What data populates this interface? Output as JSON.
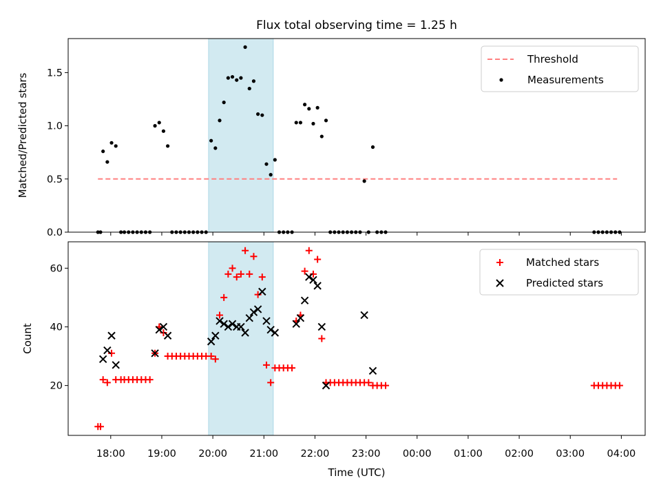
{
  "chart_data": {
    "title": "Flux total observing time = 1.25 h",
    "shaded_interval": [
      "19:55",
      "21:11"
    ],
    "shade_color": "#add8e6",
    "x_axis": {
      "label": "Time (UTC)",
      "range": [
        "17:10",
        "04:28"
      ],
      "tick_labels": [
        "18:00",
        "19:00",
        "20:00",
        "21:00",
        "22:00",
        "23:00",
        "00:00",
        "01:00",
        "02:00",
        "03:00",
        "04:00"
      ]
    },
    "panels": [
      {
        "type": "scatter",
        "ylabel": "Matched/Predicted stars",
        "ylim": [
          0,
          1.82
        ],
        "y_ticks": [
          "0.0",
          "0.5",
          "1.0",
          "1.5"
        ],
        "legend_position": "upper right",
        "series": [
          {
            "name": "Threshold",
            "kind": "line",
            "style": "dashed",
            "color": "#ff8080",
            "points": [
              [
                "17:45",
                0.5
              ],
              [
                "03:55",
                0.5
              ]
            ]
          },
          {
            "name": "Measurements",
            "kind": "scatter",
            "color": "#000000",
            "points": [
              [
                "17:45",
                0
              ],
              [
                "17:48",
                0
              ],
              [
                "17:51",
                0.76
              ],
              [
                "17:56",
                0.66
              ],
              [
                "18:01",
                0.84
              ],
              [
                "18:06",
                0.81
              ],
              [
                "18:12",
                0
              ],
              [
                "18:16",
                0
              ],
              [
                "18:21",
                0
              ],
              [
                "18:26",
                0
              ],
              [
                "18:31",
                0
              ],
              [
                "18:36",
                0
              ],
              [
                "18:41",
                0
              ],
              [
                "18:46",
                0
              ],
              [
                "18:52",
                1.0
              ],
              [
                "18:57",
                1.03
              ],
              [
                "19:02",
                0.95
              ],
              [
                "19:07",
                0.81
              ],
              [
                "19:12",
                0
              ],
              [
                "19:17",
                0
              ],
              [
                "19:22",
                0
              ],
              [
                "19:27",
                0
              ],
              [
                "19:32",
                0
              ],
              [
                "19:37",
                0
              ],
              [
                "19:42",
                0
              ],
              [
                "19:47",
                0
              ],
              [
                "19:52",
                0
              ],
              [
                "19:58",
                0.86
              ],
              [
                "20:03",
                0.79
              ],
              [
                "20:08",
                1.05
              ],
              [
                "20:13",
                1.22
              ],
              [
                "20:18",
                1.45
              ],
              [
                "20:23",
                1.46
              ],
              [
                "20:28",
                1.43
              ],
              [
                "20:33",
                1.45
              ],
              [
                "20:38",
                1.74
              ],
              [
                "20:43",
                1.35
              ],
              [
                "20:48",
                1.42
              ],
              [
                "20:53",
                1.11
              ],
              [
                "20:58",
                1.1
              ],
              [
                "21:03",
                0.64
              ],
              [
                "21:08",
                0.54
              ],
              [
                "21:13",
                0.68
              ],
              [
                "21:18",
                0
              ],
              [
                "21:23",
                0
              ],
              [
                "21:28",
                0
              ],
              [
                "21:33",
                0
              ],
              [
                "21:38",
                1.03
              ],
              [
                "21:43",
                1.03
              ],
              [
                "21:48",
                1.2
              ],
              [
                "21:53",
                1.16
              ],
              [
                "21:58",
                1.02
              ],
              [
                "22:03",
                1.17
              ],
              [
                "22:08",
                0.9
              ],
              [
                "22:13",
                1.05
              ],
              [
                "22:18",
                0
              ],
              [
                "22:23",
                0
              ],
              [
                "22:28",
                0
              ],
              [
                "22:33",
                0
              ],
              [
                "22:38",
                0
              ],
              [
                "22:43",
                0
              ],
              [
                "22:48",
                0
              ],
              [
                "22:53",
                0
              ],
              [
                "22:58",
                0.48
              ],
              [
                "23:03",
                0
              ],
              [
                "23:08",
                0.8
              ],
              [
                "23:13",
                0
              ],
              [
                "23:18",
                0
              ],
              [
                "23:23",
                0
              ],
              [
                "03:28",
                0
              ],
              [
                "03:33",
                0
              ],
              [
                "03:38",
                0
              ],
              [
                "03:43",
                0
              ],
              [
                "03:48",
                0
              ],
              [
                "03:53",
                0
              ],
              [
                "03:58",
                0
              ]
            ]
          }
        ]
      },
      {
        "type": "scatter",
        "ylabel": "Count",
        "ylim": [
          3,
          69
        ],
        "y_ticks": [
          "20",
          "40",
          "60"
        ],
        "legend_position": "upper right",
        "series": [
          {
            "name": "Matched stars",
            "marker": "+",
            "color": "#ff0000",
            "points": [
              [
                "17:45",
                6
              ],
              [
                "17:48",
                6
              ],
              [
                "17:51",
                22
              ],
              [
                "17:56",
                21
              ],
              [
                "18:01",
                31
              ],
              [
                "18:06",
                22
              ],
              [
                "18:12",
                22
              ],
              [
                "18:16",
                22
              ],
              [
                "18:21",
                22
              ],
              [
                "18:26",
                22
              ],
              [
                "18:31",
                22
              ],
              [
                "18:36",
                22
              ],
              [
                "18:41",
                22
              ],
              [
                "18:46",
                22
              ],
              [
                "18:52",
                31
              ],
              [
                "18:57",
                40
              ],
              [
                "19:02",
                38
              ],
              [
                "19:07",
                30
              ],
              [
                "19:12",
                30
              ],
              [
                "19:17",
                30
              ],
              [
                "19:22",
                30
              ],
              [
                "19:27",
                30
              ],
              [
                "19:32",
                30
              ],
              [
                "19:37",
                30
              ],
              [
                "19:42",
                30
              ],
              [
                "19:47",
                30
              ],
              [
                "19:52",
                30
              ],
              [
                "19:58",
                30
              ],
              [
                "20:03",
                29
              ],
              [
                "20:08",
                44
              ],
              [
                "20:13",
                50
              ],
              [
                "20:18",
                58
              ],
              [
                "20:23",
                60
              ],
              [
                "20:28",
                57
              ],
              [
                "20:33",
                58
              ],
              [
                "20:38",
                66
              ],
              [
                "20:43",
                58
              ],
              [
                "20:48",
                64
              ],
              [
                "20:53",
                51
              ],
              [
                "20:58",
                57
              ],
              [
                "21:03",
                27
              ],
              [
                "21:08",
                21
              ],
              [
                "21:13",
                26
              ],
              [
                "21:18",
                26
              ],
              [
                "21:23",
                26
              ],
              [
                "21:28",
                26
              ],
              [
                "21:33",
                26
              ],
              [
                "21:38",
                42
              ],
              [
                "21:43",
                44
              ],
              [
                "21:48",
                59
              ],
              [
                "21:53",
                66
              ],
              [
                "21:58",
                58
              ],
              [
                "22:03",
                63
              ],
              [
                "22:08",
                36
              ],
              [
                "22:13",
                21
              ],
              [
                "22:18",
                21
              ],
              [
                "22:23",
                21
              ],
              [
                "22:28",
                21
              ],
              [
                "22:33",
                21
              ],
              [
                "22:38",
                21
              ],
              [
                "22:43",
                21
              ],
              [
                "22:48",
                21
              ],
              [
                "22:53",
                21
              ],
              [
                "22:58",
                21
              ],
              [
                "23:03",
                21
              ],
              [
                "23:08",
                20
              ],
              [
                "23:13",
                20
              ],
              [
                "23:18",
                20
              ],
              [
                "23:23",
                20
              ],
              [
                "03:28",
                20
              ],
              [
                "03:33",
                20
              ],
              [
                "03:38",
                20
              ],
              [
                "03:43",
                20
              ],
              [
                "03:48",
                20
              ],
              [
                "03:53",
                20
              ],
              [
                "03:58",
                20
              ]
            ]
          },
          {
            "name": "Predicted stars",
            "marker": "x",
            "color": "#000000",
            "points": [
              [
                "17:51",
                29
              ],
              [
                "17:56",
                32
              ],
              [
                "18:01",
                37
              ],
              [
                "18:06",
                27
              ],
              [
                "18:52",
                31
              ],
              [
                "18:57",
                39
              ],
              [
                "19:02",
                40
              ],
              [
                "19:07",
                37
              ],
              [
                "19:58",
                35
              ],
              [
                "20:03",
                37
              ],
              [
                "20:08",
                42
              ],
              [
                "20:13",
                41
              ],
              [
                "20:18",
                40
              ],
              [
                "20:23",
                41
              ],
              [
                "20:28",
                40
              ],
              [
                "20:33",
                40
              ],
              [
                "20:38",
                38
              ],
              [
                "20:43",
                43
              ],
              [
                "20:48",
                45
              ],
              [
                "20:53",
                46
              ],
              [
                "20:58",
                52
              ],
              [
                "21:03",
                42
              ],
              [
                "21:08",
                39
              ],
              [
                "21:13",
                38
              ],
              [
                "21:38",
                41
              ],
              [
                "21:43",
                43
              ],
              [
                "21:48",
                49
              ],
              [
                "21:53",
                57
              ],
              [
                "21:58",
                56
              ],
              [
                "22:03",
                54
              ],
              [
                "22:08",
                40
              ],
              [
                "22:13",
                20
              ],
              [
                "22:58",
                44
              ],
              [
                "23:08",
                25
              ]
            ]
          }
        ]
      }
    ]
  }
}
